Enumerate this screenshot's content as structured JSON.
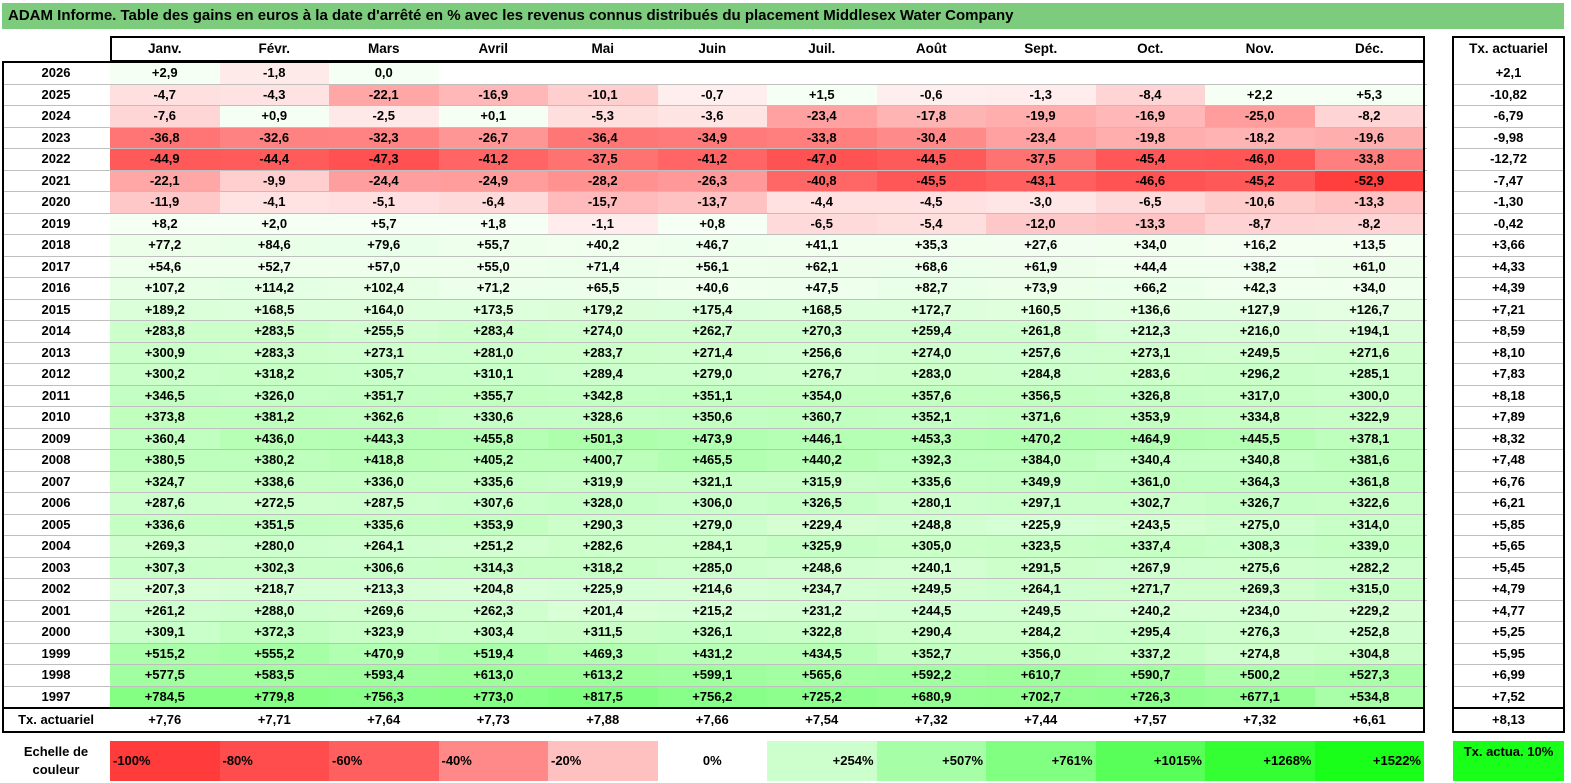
{
  "title": "ADAM Informe. Table des gains en euros à la date d'arrêté en % avec les revenus connus distribués du placement Middlesex Water Company",
  "chart_data": {
    "type": "table",
    "title": "ADAM Informe. Table des gains en euros à la date d'arrêté en % avec les revenus connus distribués du placement Middlesex Water Company",
    "months": [
      "Janv.",
      "Févr.",
      "Mars",
      "Avril",
      "Mai",
      "Juin",
      "Juil.",
      "Août",
      "Sept.",
      "Oct.",
      "Nov.",
      "Déc."
    ],
    "rate_header": "Tx. actuariel",
    "rows": [
      {
        "year": "2026",
        "values": [
          "+2,9",
          "-1,8",
          "0,0",
          "",
          "",
          "",
          "",
          "",
          "",
          "",
          "",
          ""
        ],
        "rate": "+2,1"
      },
      {
        "year": "2025",
        "values": [
          "-4,7",
          "-4,3",
          "-22,1",
          "-16,9",
          "-10,1",
          "-0,7",
          "+1,5",
          "-0,6",
          "-1,3",
          "-8,4",
          "+2,2",
          "+5,3"
        ],
        "rate": "-10,82"
      },
      {
        "year": "2024",
        "values": [
          "-7,6",
          "+0,9",
          "-2,5",
          "+0,1",
          "-5,3",
          "-3,6",
          "-23,4",
          "-17,8",
          "-19,9",
          "-16,9",
          "-25,0",
          "-8,2"
        ],
        "rate": "-6,79"
      },
      {
        "year": "2023",
        "values": [
          "-36,8",
          "-32,6",
          "-32,3",
          "-26,7",
          "-36,4",
          "-34,9",
          "-33,8",
          "-30,4",
          "-23,4",
          "-19,8",
          "-18,2",
          "-19,6"
        ],
        "rate": "-9,98"
      },
      {
        "year": "2022",
        "values": [
          "-44,9",
          "-44,4",
          "-47,3",
          "-41,2",
          "-37,5",
          "-41,2",
          "-47,0",
          "-44,5",
          "-37,5",
          "-45,4",
          "-46,0",
          "-33,8"
        ],
        "rate": "-12,72"
      },
      {
        "year": "2021",
        "values": [
          "-22,1",
          "-9,9",
          "-24,4",
          "-24,9",
          "-28,2",
          "-26,3",
          "-40,8",
          "-45,5",
          "-43,1",
          "-46,6",
          "-45,2",
          "-52,9"
        ],
        "rate": "-7,47"
      },
      {
        "year": "2020",
        "values": [
          "-11,9",
          "-4,1",
          "-5,1",
          "-6,4",
          "-15,7",
          "-13,7",
          "-4,4",
          "-4,5",
          "-3,0",
          "-6,5",
          "-10,6",
          "-13,3"
        ],
        "rate": "-1,30"
      },
      {
        "year": "2019",
        "values": [
          "+8,2",
          "+2,0",
          "+5,7",
          "+1,8",
          "-1,1",
          "+0,8",
          "-6,5",
          "-5,4",
          "-12,0",
          "-13,3",
          "-8,7",
          "-8,2"
        ],
        "rate": "-0,42"
      },
      {
        "year": "2018",
        "values": [
          "+77,2",
          "+84,6",
          "+79,6",
          "+55,7",
          "+40,2",
          "+46,7",
          "+41,1",
          "+35,3",
          "+27,6",
          "+34,0",
          "+16,2",
          "+13,5"
        ],
        "rate": "+3,66"
      },
      {
        "year": "2017",
        "values": [
          "+54,6",
          "+52,7",
          "+57,0",
          "+55,0",
          "+71,4",
          "+56,1",
          "+62,1",
          "+68,6",
          "+61,9",
          "+44,4",
          "+38,2",
          "+61,0"
        ],
        "rate": "+4,33"
      },
      {
        "year": "2016",
        "values": [
          "+107,2",
          "+114,2",
          "+102,4",
          "+71,2",
          "+65,5",
          "+40,6",
          "+47,5",
          "+82,7",
          "+73,9",
          "+66,2",
          "+42,3",
          "+34,0"
        ],
        "rate": "+4,39"
      },
      {
        "year": "2015",
        "values": [
          "+189,2",
          "+168,5",
          "+164,0",
          "+173,5",
          "+179,2",
          "+175,4",
          "+168,5",
          "+172,7",
          "+160,5",
          "+136,6",
          "+127,9",
          "+126,7"
        ],
        "rate": "+7,21"
      },
      {
        "year": "2014",
        "values": [
          "+283,8",
          "+283,5",
          "+255,5",
          "+283,4",
          "+274,0",
          "+262,7",
          "+270,3",
          "+259,4",
          "+261,8",
          "+212,3",
          "+216,0",
          "+194,1"
        ],
        "rate": "+8,59"
      },
      {
        "year": "2013",
        "values": [
          "+300,9",
          "+283,3",
          "+273,1",
          "+281,0",
          "+283,7",
          "+271,4",
          "+256,6",
          "+274,0",
          "+257,6",
          "+273,1",
          "+249,5",
          "+271,6"
        ],
        "rate": "+8,10"
      },
      {
        "year": "2012",
        "values": [
          "+300,2",
          "+318,2",
          "+305,7",
          "+310,1",
          "+289,4",
          "+279,0",
          "+276,7",
          "+283,0",
          "+284,8",
          "+283,6",
          "+296,2",
          "+285,1"
        ],
        "rate": "+7,83"
      },
      {
        "year": "2011",
        "values": [
          "+346,5",
          "+326,0",
          "+351,7",
          "+355,7",
          "+342,8",
          "+351,1",
          "+354,0",
          "+357,6",
          "+356,5",
          "+326,8",
          "+317,0",
          "+300,0"
        ],
        "rate": "+8,18"
      },
      {
        "year": "2010",
        "values": [
          "+373,8",
          "+381,2",
          "+362,6",
          "+330,6",
          "+328,6",
          "+350,6",
          "+360,7",
          "+352,1",
          "+371,6",
          "+353,9",
          "+334,8",
          "+322,9"
        ],
        "rate": "+7,89"
      },
      {
        "year": "2009",
        "values": [
          "+360,4",
          "+436,0",
          "+443,3",
          "+455,8",
          "+501,3",
          "+473,9",
          "+446,1",
          "+453,3",
          "+470,2",
          "+464,9",
          "+445,5",
          "+378,1"
        ],
        "rate": "+8,32"
      },
      {
        "year": "2008",
        "values": [
          "+380,5",
          "+380,2",
          "+418,8",
          "+405,2",
          "+400,7",
          "+465,5",
          "+440,2",
          "+392,3",
          "+384,0",
          "+340,4",
          "+340,8",
          "+381,6"
        ],
        "rate": "+7,48"
      },
      {
        "year": "2007",
        "values": [
          "+324,7",
          "+338,6",
          "+336,0",
          "+335,6",
          "+319,9",
          "+321,1",
          "+315,9",
          "+335,6",
          "+349,9",
          "+361,0",
          "+364,3",
          "+361,8"
        ],
        "rate": "+6,76"
      },
      {
        "year": "2006",
        "values": [
          "+287,6",
          "+272,5",
          "+287,5",
          "+307,6",
          "+328,0",
          "+306,0",
          "+326,5",
          "+280,1",
          "+297,1",
          "+302,7",
          "+326,7",
          "+322,6"
        ],
        "rate": "+6,21"
      },
      {
        "year": "2005",
        "values": [
          "+336,6",
          "+351,5",
          "+335,6",
          "+353,9",
          "+290,3",
          "+279,0",
          "+229,4",
          "+248,8",
          "+225,9",
          "+243,5",
          "+275,0",
          "+314,0"
        ],
        "rate": "+5,85"
      },
      {
        "year": "2004",
        "values": [
          "+269,3",
          "+280,0",
          "+264,1",
          "+251,2",
          "+282,6",
          "+284,1",
          "+325,9",
          "+305,0",
          "+323,5",
          "+337,4",
          "+308,3",
          "+339,0"
        ],
        "rate": "+5,65"
      },
      {
        "year": "2003",
        "values": [
          "+307,3",
          "+302,3",
          "+306,6",
          "+314,3",
          "+318,2",
          "+285,0",
          "+248,6",
          "+240,1",
          "+291,5",
          "+267,9",
          "+275,6",
          "+282,2"
        ],
        "rate": "+5,45"
      },
      {
        "year": "2002",
        "values": [
          "+207,3",
          "+218,7",
          "+213,3",
          "+204,8",
          "+225,9",
          "+214,6",
          "+234,7",
          "+249,5",
          "+264,1",
          "+271,7",
          "+269,3",
          "+315,0"
        ],
        "rate": "+4,79"
      },
      {
        "year": "2001",
        "values": [
          "+261,2",
          "+288,0",
          "+269,6",
          "+262,3",
          "+201,4",
          "+215,2",
          "+231,2",
          "+244,5",
          "+249,5",
          "+240,2",
          "+234,0",
          "+229,2"
        ],
        "rate": "+4,77"
      },
      {
        "year": "2000",
        "values": [
          "+309,1",
          "+372,3",
          "+323,9",
          "+303,4",
          "+311,5",
          "+326,1",
          "+322,8",
          "+290,4",
          "+284,2",
          "+295,4",
          "+276,3",
          "+252,8"
        ],
        "rate": "+5,25"
      },
      {
        "year": "1999",
        "values": [
          "+515,2",
          "+555,2",
          "+470,9",
          "+519,4",
          "+469,3",
          "+431,2",
          "+434,5",
          "+352,7",
          "+356,0",
          "+337,2",
          "+274,8",
          "+304,8"
        ],
        "rate": "+5,95"
      },
      {
        "year": "1998",
        "values": [
          "+577,5",
          "+583,5",
          "+593,4",
          "+613,0",
          "+613,2",
          "+599,1",
          "+565,6",
          "+592,2",
          "+610,7",
          "+590,7",
          "+500,2",
          "+527,3"
        ],
        "rate": "+6,99"
      },
      {
        "year": "1997",
        "values": [
          "+784,5",
          "+779,8",
          "+756,3",
          "+773,0",
          "+817,5",
          "+756,2",
          "+725,2",
          "+680,9",
          "+702,7",
          "+726,3",
          "+677,1",
          "+534,8"
        ],
        "rate": "+7,52"
      }
    ],
    "footer": {
      "label": "Tx. actuariel",
      "values": [
        "+7,76",
        "+7,71",
        "+7,64",
        "+7,73",
        "+7,88",
        "+7,66",
        "+7,54",
        "+7,32",
        "+7,44",
        "+7,57",
        "+7,32",
        "+6,61"
      ],
      "rate": "+8,13"
    },
    "legend": {
      "label": "Echelle de couleur",
      "steps": [
        "-100%",
        "-80%",
        "-60%",
        "-40%",
        "-20%",
        "0%",
        "+254%",
        "+507%",
        "+761%",
        "+1015%",
        "+1268%",
        "+1522%"
      ],
      "colors": [
        "#ff3b3b",
        "#ff4d4d",
        "#ff5f5f",
        "#ff8888",
        "#ffc0c0",
        "#ffffff",
        "#ccffcc",
        "#a6ffa6",
        "#80ff80",
        "#59ff59",
        "#33ff33",
        "#1aff1a"
      ],
      "rate_label": "Tx. actua. 10%",
      "rate_color": "#1aff1a"
    }
  }
}
